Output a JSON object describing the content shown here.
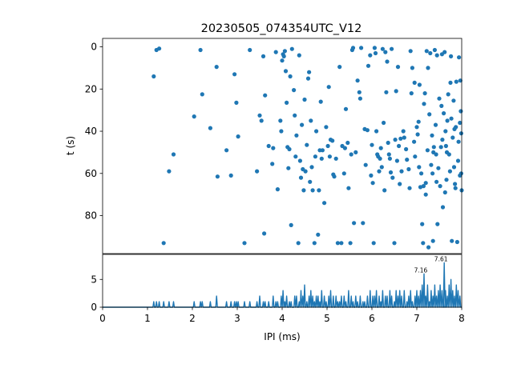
{
  "chart_data": [
    {
      "type": "scatter",
      "title": "20230505_074354UTC_V12",
      "xlabel": "",
      "ylabel": "t (s)",
      "xlim": [
        0,
        8
      ],
      "ylim": [
        98,
        -4
      ],
      "y_inverted": true,
      "y_ticks": [
        "0",
        "20",
        "40",
        "60",
        "80"
      ],
      "y_tick_values": [
        0,
        20,
        40,
        60,
        80
      ],
      "grid": false,
      "marker_color": "#1f77b4",
      "points": [
        [
          1.14,
          14
        ],
        [
          1.2,
          1.5
        ],
        [
          1.26,
          0.8
        ],
        [
          1.36,
          93
        ],
        [
          1.48,
          59
        ],
        [
          1.58,
          51
        ],
        [
          2.04,
          33
        ],
        [
          2.18,
          1.5
        ],
        [
          2.22,
          22.5
        ],
        [
          2.4,
          38.5
        ],
        [
          2.54,
          9.5
        ],
        [
          2.56,
          61.5
        ],
        [
          2.76,
          49
        ],
        [
          2.86,
          61
        ],
        [
          2.94,
          13
        ],
        [
          2.98,
          26.5
        ],
        [
          3.02,
          42.5
        ],
        [
          3.16,
          93
        ],
        [
          3.28,
          1.5
        ],
        [
          3.44,
          59
        ],
        [
          3.5,
          32.5
        ],
        [
          3.54,
          35
        ],
        [
          3.58,
          4.5
        ],
        [
          3.6,
          88.5
        ],
        [
          3.62,
          23
        ],
        [
          3.7,
          47
        ],
        [
          3.8,
          48
        ],
        [
          3.78,
          55.5
        ],
        [
          3.86,
          2.5
        ],
        [
          3.9,
          67.5
        ],
        [
          3.96,
          35
        ],
        [
          3.98,
          40
        ],
        [
          4.0,
          6.5
        ],
        [
          4.02,
          3.5
        ],
        [
          4.04,
          4.5
        ],
        [
          4.06,
          2
        ],
        [
          4.08,
          11.5
        ],
        [
          4.1,
          26.5
        ],
        [
          4.12,
          47.5
        ],
        [
          4.14,
          57.5
        ],
        [
          4.16,
          48.5
        ],
        [
          4.18,
          14
        ],
        [
          4.2,
          84.5
        ],
        [
          4.22,
          1
        ],
        [
          4.26,
          20.5
        ],
        [
          4.28,
          32.5
        ],
        [
          4.3,
          52
        ],
        [
          4.32,
          42
        ],
        [
          4.36,
          93
        ],
        [
          4.38,
          4
        ],
        [
          4.4,
          54
        ],
        [
          4.42,
          62
        ],
        [
          4.44,
          37
        ],
        [
          4.46,
          58
        ],
        [
          4.48,
          68
        ],
        [
          4.5,
          25
        ],
        [
          4.52,
          59
        ],
        [
          4.55,
          46.5
        ],
        [
          4.58,
          15
        ],
        [
          4.6,
          12
        ],
        [
          4.62,
          64
        ],
        [
          4.64,
          35
        ],
        [
          4.66,
          57
        ],
        [
          4.68,
          68
        ],
        [
          4.72,
          93
        ],
        [
          4.74,
          52
        ],
        [
          4.76,
          40
        ],
        [
          4.8,
          89
        ],
        [
          4.82,
          68
        ],
        [
          4.84,
          49
        ],
        [
          4.86,
          26
        ],
        [
          4.88,
          53
        ],
        [
          4.9,
          49
        ],
        [
          4.94,
          74
        ],
        [
          4.98,
          38
        ],
        [
          5.02,
          47
        ],
        [
          5.04,
          19
        ],
        [
          5.06,
          52
        ],
        [
          5.08,
          44
        ],
        [
          5.12,
          44.5
        ],
        [
          5.14,
          60.5
        ],
        [
          5.16,
          61.5
        ],
        [
          5.2,
          53
        ],
        [
          5.24,
          93
        ],
        [
          5.28,
          9.5
        ],
        [
          5.32,
          93
        ],
        [
          5.34,
          47
        ],
        [
          5.38,
          60
        ],
        [
          5.4,
          48
        ],
        [
          5.42,
          29.5
        ],
        [
          5.46,
          45.5
        ],
        [
          5.48,
          67
        ],
        [
          5.52,
          93
        ],
        [
          5.54,
          51
        ],
        [
          5.56,
          1.5
        ],
        [
          5.58,
          0.5
        ],
        [
          5.6,
          83.5
        ],
        [
          5.64,
          50
        ],
        [
          5.68,
          16
        ],
        [
          5.72,
          21.5
        ],
        [
          5.74,
          24.5
        ],
        [
          5.76,
          0.5
        ],
        [
          5.8,
          83.5
        ],
        [
          5.84,
          39
        ],
        [
          5.86,
          56
        ],
        [
          5.9,
          39.5
        ],
        [
          5.92,
          9
        ],
        [
          5.96,
          4
        ],
        [
          5.98,
          61
        ],
        [
          6.0,
          46.5
        ],
        [
          6.02,
          64.5
        ],
        [
          6.04,
          93
        ],
        [
          6.06,
          0.5
        ],
        [
          6.08,
          3
        ],
        [
          6.1,
          40
        ],
        [
          6.12,
          51
        ],
        [
          6.14,
          52
        ],
        [
          6.16,
          59
        ],
        [
          6.18,
          53
        ],
        [
          6.2,
          48
        ],
        [
          6.22,
          57
        ],
        [
          6.24,
          1
        ],
        [
          6.26,
          36
        ],
        [
          6.28,
          68
        ],
        [
          6.3,
          2.5
        ],
        [
          6.32,
          21.5
        ],
        [
          6.34,
          7
        ],
        [
          6.36,
          45.5
        ],
        [
          6.38,
          51
        ],
        [
          6.4,
          53
        ],
        [
          6.42,
          59.5
        ],
        [
          6.44,
          1
        ],
        [
          6.46,
          62
        ],
        [
          6.5,
          93
        ],
        [
          6.52,
          44
        ],
        [
          6.54,
          21
        ],
        [
          6.56,
          54
        ],
        [
          6.58,
          9.5
        ],
        [
          6.6,
          47
        ],
        [
          6.62,
          65
        ],
        [
          6.64,
          43.5
        ],
        [
          6.66,
          59
        ],
        [
          6.7,
          40
        ],
        [
          6.72,
          43
        ],
        [
          6.76,
          48.5
        ],
        [
          6.78,
          53.5
        ],
        [
          6.82,
          58
        ],
        [
          6.84,
          67
        ],
        [
          6.86,
          2
        ],
        [
          6.88,
          22
        ],
        [
          6.9,
          10
        ],
        [
          6.94,
          45
        ],
        [
          6.96,
          52
        ],
        [
          7.0,
          38
        ],
        [
          7.02,
          41.5
        ],
        [
          7.04,
          35.5
        ],
        [
          7.06,
          18
        ],
        [
          7.08,
          66.5
        ],
        [
          7.1,
          60
        ],
        [
          7.12,
          84
        ],
        [
          7.14,
          93
        ],
        [
          7.16,
          27
        ],
        [
          7.18,
          22
        ],
        [
          7.2,
          64.5
        ],
        [
          7.22,
          2
        ],
        [
          7.24,
          49
        ],
        [
          7.26,
          95
        ],
        [
          7.28,
          32
        ],
        [
          7.3,
          3
        ],
        [
          7.32,
          56
        ],
        [
          7.34,
          42
        ],
        [
          7.36,
          92
        ],
        [
          7.38,
          47.5
        ],
        [
          7.4,
          1.5
        ],
        [
          7.42,
          37
        ],
        [
          7.44,
          64
        ],
        [
          7.46,
          84
        ],
        [
          7.48,
          57.5
        ],
        [
          7.5,
          24.5
        ],
        [
          7.52,
          66
        ],
        [
          7.54,
          47.5
        ],
        [
          7.56,
          3.5
        ],
        [
          7.58,
          76
        ],
        [
          7.6,
          31.5
        ],
        [
          7.62,
          2.5
        ],
        [
          7.64,
          40
        ],
        [
          7.66,
          63
        ],
        [
          7.68,
          35
        ],
        [
          7.7,
          22.5
        ],
        [
          7.72,
          51
        ],
        [
          7.74,
          59
        ],
        [
          7.76,
          4.5
        ],
        [
          7.78,
          92
        ],
        [
          7.8,
          43
        ],
        [
          7.82,
          25.5
        ],
        [
          7.84,
          39
        ],
        [
          7.86,
          67
        ],
        [
          7.88,
          16.5
        ],
        [
          7.9,
          92.5
        ],
        [
          7.92,
          54
        ],
        [
          7.94,
          5
        ],
        [
          7.96,
          61
        ],
        [
          7.98,
          30.5
        ],
        [
          8.0,
          68
        ],
        [
          7.45,
          4
        ],
        [
          7.35,
          60
        ],
        [
          7.2,
          70
        ],
        [
          7.93,
          45
        ],
        [
          7.67,
          50
        ],
        [
          7.99,
          60
        ],
        [
          7.25,
          10
        ],
        [
          7.87,
          38
        ],
        [
          7.55,
          28
        ],
        [
          7.15,
          66
        ],
        [
          7.65,
          47
        ],
        [
          7.75,
          17
        ],
        [
          7.97,
          16
        ],
        [
          7.85,
          65
        ],
        [
          7.05,
          57
        ],
        [
          6.95,
          17
        ],
        [
          7.37,
          50
        ],
        [
          7.63,
          69
        ],
        [
          7.77,
          34
        ],
        [
          7.83,
          57
        ],
        [
          7.43,
          51
        ],
        [
          7.57,
          44
        ],
        [
          7.96,
          36
        ],
        [
          7.99,
          41
        ]
      ]
    },
    {
      "type": "line",
      "xlabel": "IPI (ms)",
      "ylabel": "",
      "xlim": [
        0,
        8
      ],
      "ylim": [
        0,
        9.5
      ],
      "x_ticks": [
        "0",
        "1",
        "2",
        "3",
        "4",
        "5",
        "6",
        "7",
        "8"
      ],
      "x_tick_values": [
        0,
        1,
        2,
        3,
        4,
        5,
        6,
        7,
        8
      ],
      "y_ticks": [
        "0",
        "5"
      ],
      "y_tick_values": [
        0,
        5
      ],
      "line_color": "#1f77b4",
      "annotations": [
        {
          "x": 7.16,
          "y": 6,
          "text": "7.16"
        },
        {
          "x": 7.61,
          "y": 8,
          "text": "7.61"
        }
      ],
      "peaks": [
        [
          1.14,
          1
        ],
        [
          1.2,
          1
        ],
        [
          1.26,
          1
        ],
        [
          1.36,
          1
        ],
        [
          1.48,
          1
        ],
        [
          1.58,
          1
        ],
        [
          2.04,
          1
        ],
        [
          2.18,
          1
        ],
        [
          2.22,
          1
        ],
        [
          2.4,
          1
        ],
        [
          2.54,
          2
        ],
        [
          2.76,
          1
        ],
        [
          2.86,
          1
        ],
        [
          2.94,
          1
        ],
        [
          2.98,
          1
        ],
        [
          3.02,
          1
        ],
        [
          3.16,
          1
        ],
        [
          3.28,
          1
        ],
        [
          3.44,
          1
        ],
        [
          3.5,
          2
        ],
        [
          3.58,
          1
        ],
        [
          3.62,
          1
        ],
        [
          3.7,
          1
        ],
        [
          3.8,
          2
        ],
        [
          3.86,
          1
        ],
        [
          3.9,
          1
        ],
        [
          3.98,
          2
        ],
        [
          4.02,
          3
        ],
        [
          4.06,
          1
        ],
        [
          4.1,
          2
        ],
        [
          4.16,
          1
        ],
        [
          4.2,
          1
        ],
        [
          4.28,
          2
        ],
        [
          4.32,
          2
        ],
        [
          4.38,
          1
        ],
        [
          4.42,
          3
        ],
        [
          4.46,
          2
        ],
        [
          4.5,
          4
        ],
        [
          4.55,
          1
        ],
        [
          4.6,
          2
        ],
        [
          4.64,
          3
        ],
        [
          4.68,
          2
        ],
        [
          4.72,
          1
        ],
        [
          4.76,
          2
        ],
        [
          4.8,
          2
        ],
        [
          4.84,
          1
        ],
        [
          4.88,
          3
        ],
        [
          4.94,
          2
        ],
        [
          4.98,
          1
        ],
        [
          5.04,
          2
        ],
        [
          5.08,
          3
        ],
        [
          5.14,
          2
        ],
        [
          5.2,
          2
        ],
        [
          5.24,
          1
        ],
        [
          5.28,
          1
        ],
        [
          5.32,
          2
        ],
        [
          5.38,
          2
        ],
        [
          5.42,
          1
        ],
        [
          5.48,
          3
        ],
        [
          5.54,
          2
        ],
        [
          5.58,
          1
        ],
        [
          5.64,
          2
        ],
        [
          5.68,
          1
        ],
        [
          5.74,
          2
        ],
        [
          5.8,
          1
        ],
        [
          5.84,
          1
        ],
        [
          5.9,
          2
        ],
        [
          5.96,
          3
        ],
        [
          6.02,
          2
        ],
        [
          6.06,
          2
        ],
        [
          6.1,
          3
        ],
        [
          6.16,
          2
        ],
        [
          6.2,
          1
        ],
        [
          6.24,
          3
        ],
        [
          6.3,
          2
        ],
        [
          6.34,
          2
        ],
        [
          6.4,
          3
        ],
        [
          6.44,
          2
        ],
        [
          6.5,
          1
        ],
        [
          6.54,
          3
        ],
        [
          6.58,
          2
        ],
        [
          6.62,
          3
        ],
        [
          6.66,
          2
        ],
        [
          6.72,
          3
        ],
        [
          6.78,
          1
        ],
        [
          6.82,
          2
        ],
        [
          6.86,
          3
        ],
        [
          6.9,
          1
        ],
        [
          6.96,
          2
        ],
        [
          7.0,
          3
        ],
        [
          7.04,
          2
        ],
        [
          7.08,
          3
        ],
        [
          7.12,
          4
        ],
        [
          7.16,
          6
        ],
        [
          7.2,
          2
        ],
        [
          7.24,
          4
        ],
        [
          7.28,
          1
        ],
        [
          7.32,
          3
        ],
        [
          7.36,
          2
        ],
        [
          7.4,
          4
        ],
        [
          7.44,
          2
        ],
        [
          7.48,
          3
        ],
        [
          7.52,
          4
        ],
        [
          7.56,
          3
        ],
        [
          7.61,
          8
        ],
        [
          7.64,
          3
        ],
        [
          7.68,
          2
        ],
        [
          7.72,
          4
        ],
        [
          7.76,
          5
        ],
        [
          7.8,
          3
        ],
        [
          7.84,
          2
        ],
        [
          7.88,
          4
        ],
        [
          7.92,
          3
        ],
        [
          7.96,
          2
        ]
      ]
    }
  ]
}
